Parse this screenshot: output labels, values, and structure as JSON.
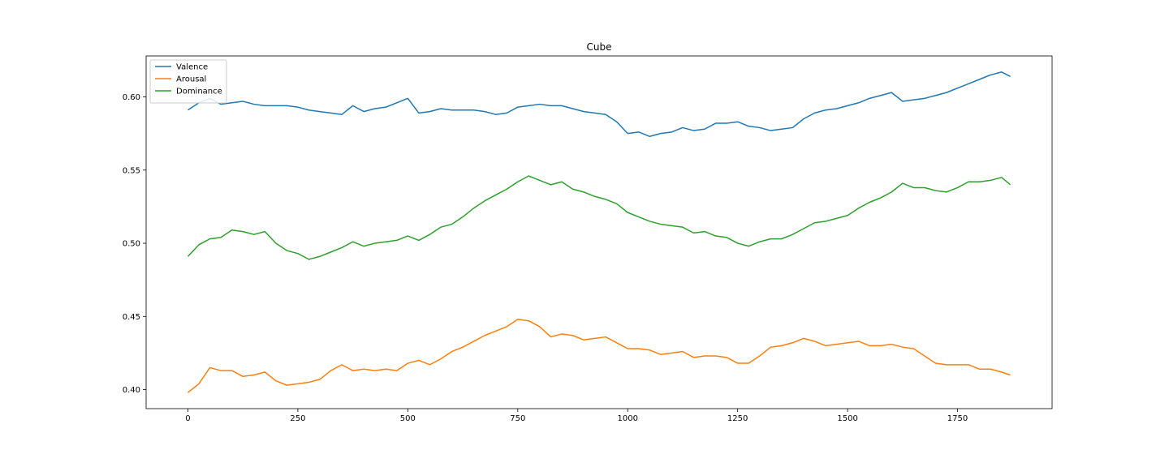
{
  "chart_data": {
    "type": "line",
    "title": "Cube",
    "xlabel": "",
    "ylabel": "",
    "xlim": [
      -95,
      1965
    ],
    "ylim": [
      0.387,
      0.628
    ],
    "x_ticks": [
      0,
      250,
      500,
      750,
      1000,
      1250,
      1500,
      1750
    ],
    "x_tick_labels": [
      "0",
      "250",
      "500",
      "750",
      "1000",
      "1250",
      "1500",
      "1750"
    ],
    "y_ticks": [
      0.4,
      0.45,
      0.5,
      0.55,
      0.6
    ],
    "y_tick_labels": [
      "0.40",
      "0.45",
      "0.50",
      "0.55",
      "0.60"
    ],
    "grid": false,
    "legend_position": "upper-left",
    "series": [
      {
        "name": "Valence",
        "color": "#1f77b4",
        "x": [
          0,
          25,
          50,
          75,
          100,
          125,
          150,
          175,
          200,
          225,
          250,
          275,
          300,
          325,
          350,
          375,
          400,
          425,
          450,
          475,
          500,
          525,
          550,
          575,
          600,
          625,
          650,
          675,
          700,
          725,
          750,
          775,
          800,
          825,
          850,
          875,
          900,
          925,
          950,
          975,
          1000,
          1025,
          1050,
          1075,
          1100,
          1125,
          1150,
          1175,
          1200,
          1225,
          1250,
          1275,
          1300,
          1325,
          1350,
          1375,
          1400,
          1425,
          1450,
          1475,
          1500,
          1525,
          1550,
          1575,
          1600,
          1625,
          1650,
          1675,
          1700,
          1725,
          1750,
          1775,
          1800,
          1825,
          1850,
          1870
        ],
        "values": [
          0.591,
          0.596,
          0.599,
          0.595,
          0.596,
          0.597,
          0.595,
          0.594,
          0.594,
          0.594,
          0.593,
          0.591,
          0.59,
          0.589,
          0.588,
          0.594,
          0.59,
          0.592,
          0.593,
          0.596,
          0.599,
          0.589,
          0.59,
          0.592,
          0.591,
          0.591,
          0.591,
          0.59,
          0.588,
          0.589,
          0.593,
          0.594,
          0.595,
          0.594,
          0.594,
          0.592,
          0.59,
          0.589,
          0.588,
          0.583,
          0.575,
          0.576,
          0.573,
          0.575,
          0.576,
          0.579,
          0.577,
          0.578,
          0.582,
          0.582,
          0.583,
          0.58,
          0.579,
          0.577,
          0.578,
          0.579,
          0.585,
          0.589,
          0.591,
          0.592,
          0.594,
          0.596,
          0.599,
          0.601,
          0.603,
          0.597,
          0.598,
          0.599,
          0.601,
          0.603,
          0.606,
          0.609,
          0.612,
          0.615,
          0.617,
          0.614
        ]
      },
      {
        "name": "Arousal",
        "color": "#ff7f0e",
        "x": [
          0,
          25,
          50,
          75,
          100,
          125,
          150,
          175,
          200,
          225,
          250,
          275,
          300,
          325,
          350,
          375,
          400,
          425,
          450,
          475,
          500,
          525,
          550,
          575,
          600,
          625,
          650,
          675,
          700,
          725,
          750,
          775,
          800,
          825,
          850,
          875,
          900,
          925,
          950,
          975,
          1000,
          1025,
          1050,
          1075,
          1100,
          1125,
          1150,
          1175,
          1200,
          1225,
          1250,
          1275,
          1300,
          1325,
          1350,
          1375,
          1400,
          1425,
          1450,
          1475,
          1500,
          1525,
          1550,
          1575,
          1600,
          1625,
          1650,
          1675,
          1700,
          1725,
          1750,
          1775,
          1800,
          1825,
          1850,
          1870
        ],
        "values": [
          0.398,
          0.404,
          0.415,
          0.413,
          0.413,
          0.409,
          0.41,
          0.412,
          0.406,
          0.403,
          0.404,
          0.405,
          0.407,
          0.413,
          0.417,
          0.413,
          0.414,
          0.413,
          0.414,
          0.413,
          0.418,
          0.42,
          0.417,
          0.421,
          0.426,
          0.429,
          0.433,
          0.437,
          0.44,
          0.443,
          0.448,
          0.447,
          0.443,
          0.436,
          0.438,
          0.437,
          0.434,
          0.435,
          0.436,
          0.432,
          0.428,
          0.428,
          0.427,
          0.424,
          0.425,
          0.426,
          0.422,
          0.423,
          0.423,
          0.422,
          0.418,
          0.418,
          0.423,
          0.429,
          0.43,
          0.432,
          0.435,
          0.433,
          0.43,
          0.431,
          0.432,
          0.433,
          0.43,
          0.43,
          0.431,
          0.429,
          0.428,
          0.423,
          0.418,
          0.417,
          0.417,
          0.417,
          0.414,
          0.414,
          0.412,
          0.41
        ]
      },
      {
        "name": "Dominance",
        "color": "#2ca02c",
        "x": [
          0,
          25,
          50,
          75,
          100,
          125,
          150,
          175,
          200,
          225,
          250,
          275,
          300,
          325,
          350,
          375,
          400,
          425,
          450,
          475,
          500,
          525,
          550,
          575,
          600,
          625,
          650,
          675,
          700,
          725,
          750,
          775,
          800,
          825,
          850,
          875,
          900,
          925,
          950,
          975,
          1000,
          1025,
          1050,
          1075,
          1100,
          1125,
          1150,
          1175,
          1200,
          1225,
          1250,
          1275,
          1300,
          1325,
          1350,
          1375,
          1400,
          1425,
          1450,
          1475,
          1500,
          1525,
          1550,
          1575,
          1600,
          1625,
          1650,
          1675,
          1700,
          1725,
          1750,
          1775,
          1800,
          1825,
          1850,
          1870
        ],
        "values": [
          0.491,
          0.499,
          0.503,
          0.504,
          0.509,
          0.508,
          0.506,
          0.508,
          0.5,
          0.495,
          0.493,
          0.489,
          0.491,
          0.494,
          0.497,
          0.501,
          0.498,
          0.5,
          0.501,
          0.502,
          0.505,
          0.502,
          0.506,
          0.511,
          0.513,
          0.518,
          0.524,
          0.529,
          0.533,
          0.537,
          0.542,
          0.546,
          0.543,
          0.54,
          0.542,
          0.537,
          0.535,
          0.532,
          0.53,
          0.527,
          0.521,
          0.518,
          0.515,
          0.513,
          0.512,
          0.511,
          0.507,
          0.508,
          0.505,
          0.504,
          0.5,
          0.498,
          0.501,
          0.503,
          0.503,
          0.506,
          0.51,
          0.514,
          0.515,
          0.517,
          0.519,
          0.524,
          0.528,
          0.531,
          0.535,
          0.541,
          0.538,
          0.538,
          0.536,
          0.535,
          0.538,
          0.542,
          0.542,
          0.543,
          0.545,
          0.54
        ]
      }
    ]
  }
}
